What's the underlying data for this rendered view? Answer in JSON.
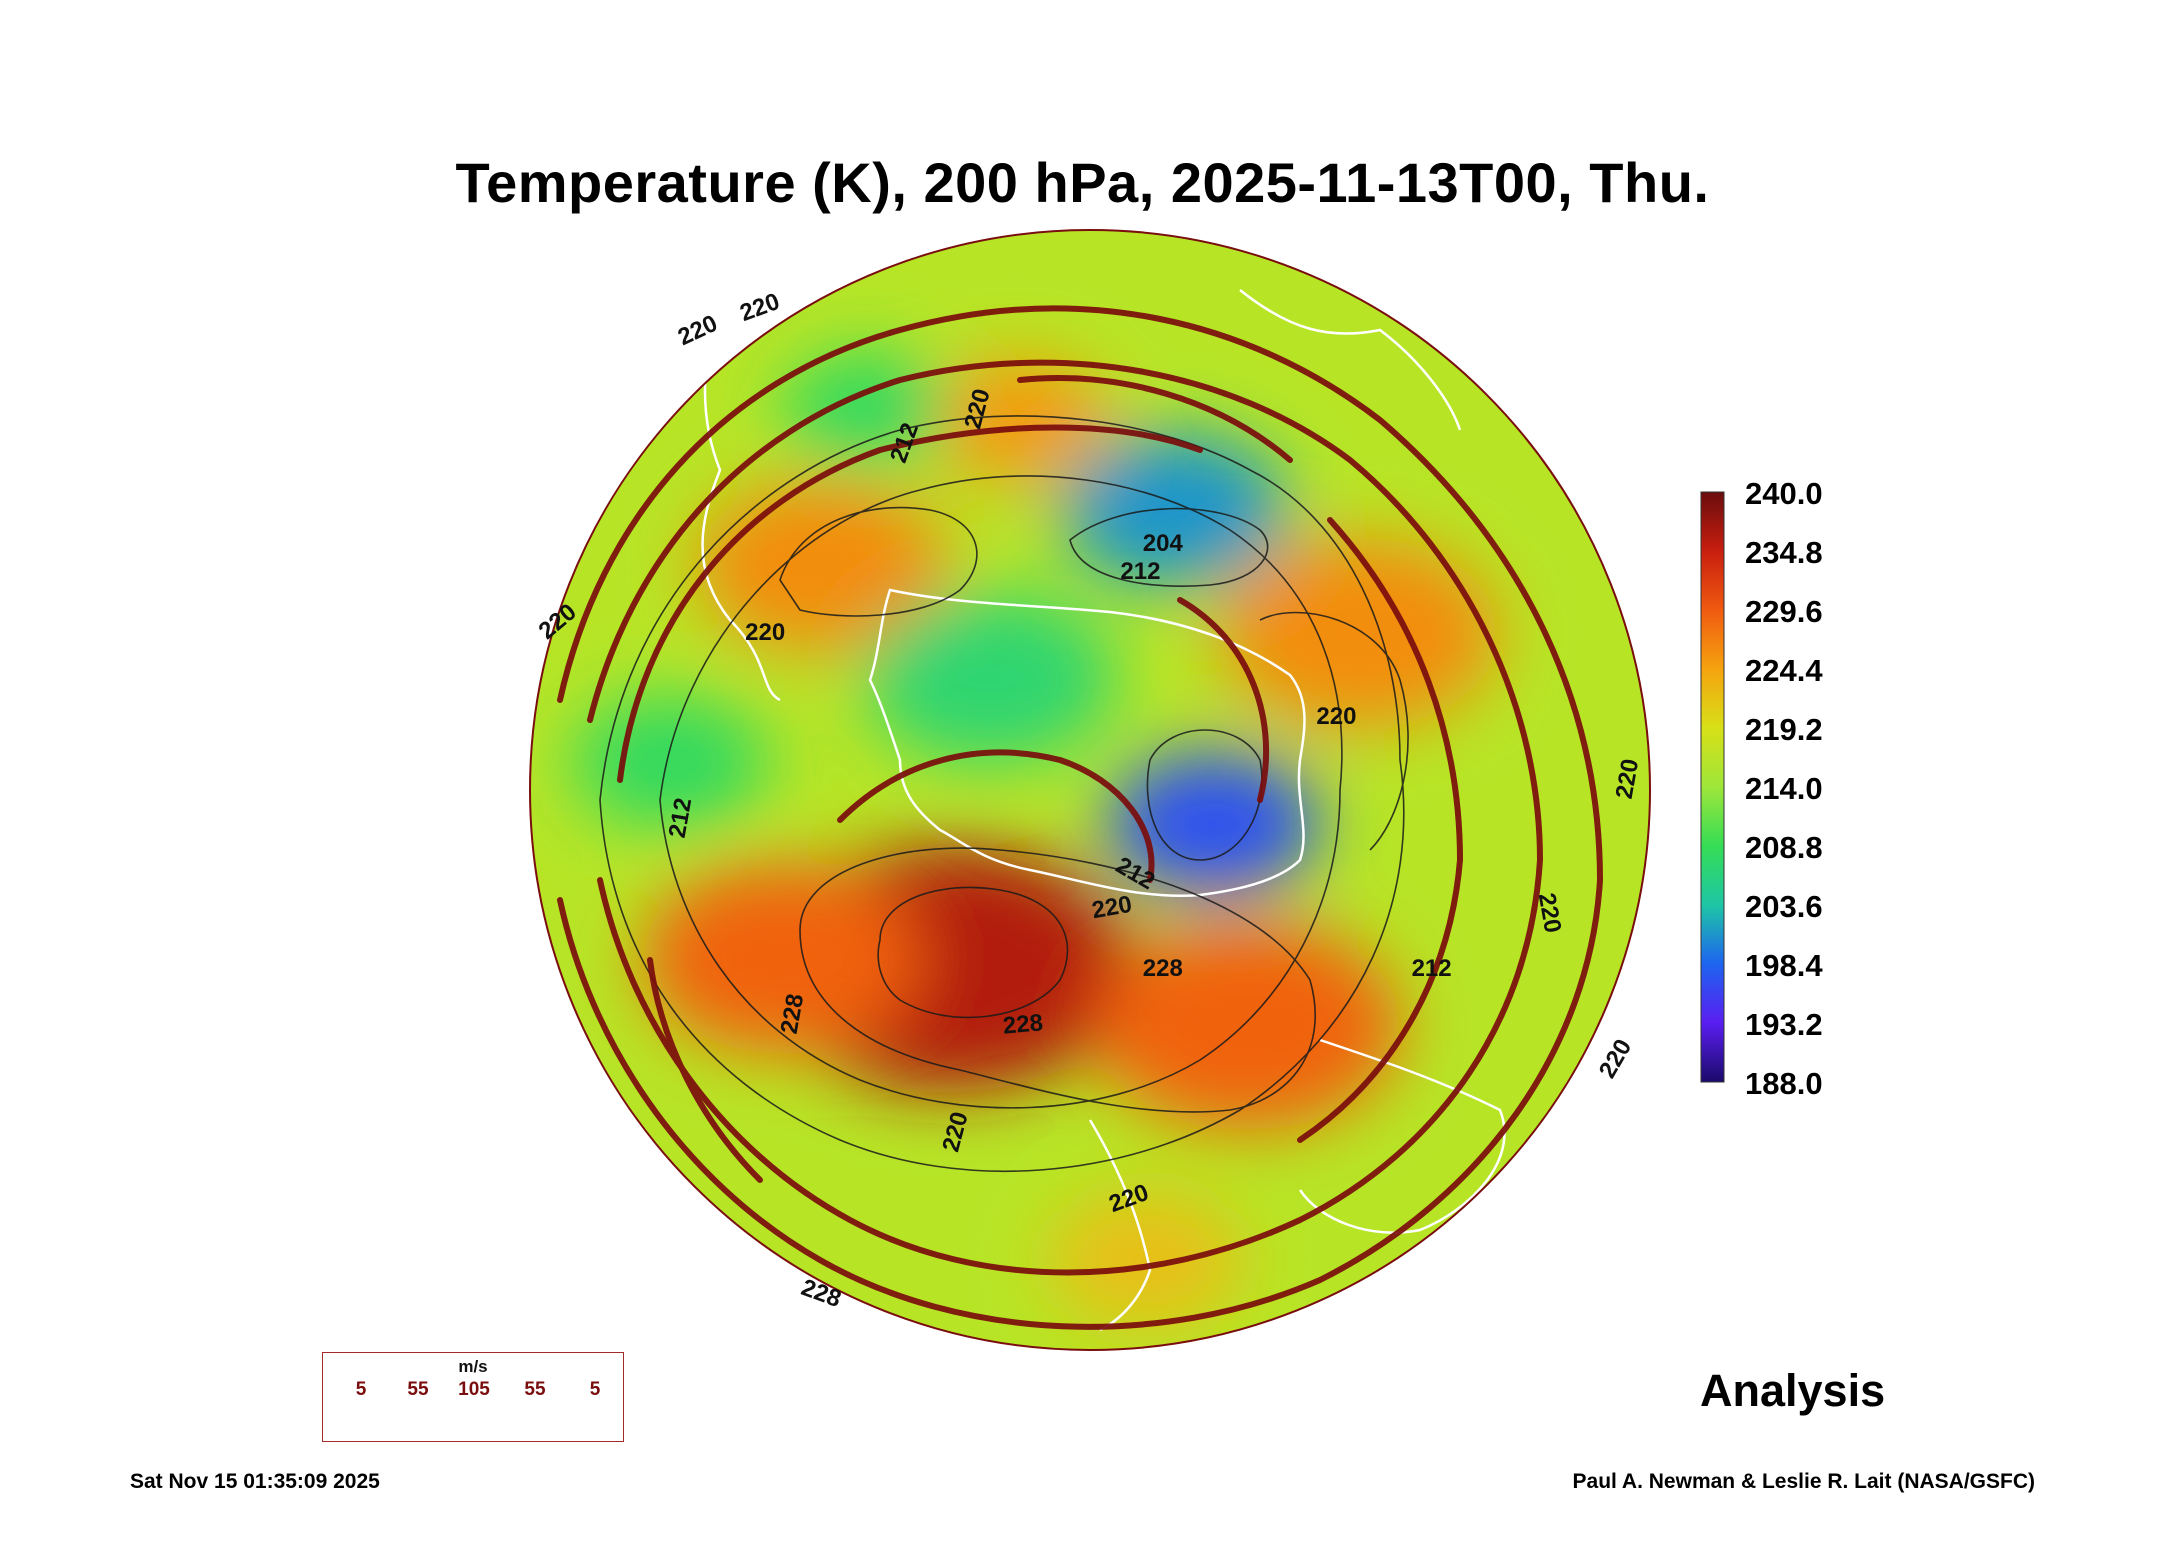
{
  "title": "Temperature (K), 200 hPa, 2025-11-13T00, Thu.",
  "colorbar": {
    "unit": "K",
    "min": 188.0,
    "max": 240.0,
    "tick_labels": [
      "240.0",
      "234.8",
      "229.6",
      "224.4",
      "219.2",
      "214.0",
      "208.8",
      "203.6",
      "198.4",
      "193.2",
      "188.0"
    ],
    "stops": [
      "#6a0d0d",
      "#c81e0f",
      "#f05a10",
      "#f5a30f",
      "#d8e017",
      "#9ee63a",
      "#35dd55",
      "#1ec6a5",
      "#1e64f0",
      "#5a1ef0",
      "#1a0a6a"
    ]
  },
  "map": {
    "projection": "orthographic, south polar",
    "contour_labels": [
      {
        "text": "220",
        "map_x": -0.7,
        "map_y": -0.82,
        "rotate": -25
      },
      {
        "text": "220",
        "map_x": -0.59,
        "map_y": -0.86,
        "rotate": -20
      },
      {
        "text": "220",
        "map_x": -0.95,
        "map_y": -0.3,
        "rotate": -40
      },
      {
        "text": "220",
        "map_x": -0.58,
        "map_y": -0.28,
        "rotate": 0
      },
      {
        "text": "212",
        "map_x": -0.33,
        "map_y": -0.62,
        "rotate": -70
      },
      {
        "text": "220",
        "map_x": -0.2,
        "map_y": -0.68,
        "rotate": -75
      },
      {
        "text": "204",
        "map_x": 0.13,
        "map_y": -0.44,
        "rotate": 0
      },
      {
        "text": "212",
        "map_x": 0.09,
        "map_y": -0.39,
        "rotate": 0
      },
      {
        "text": "220",
        "map_x": 0.44,
        "map_y": -0.13,
        "rotate": 0
      },
      {
        "text": "212",
        "map_x": -0.73,
        "map_y": 0.05,
        "rotate": -80
      },
      {
        "text": "212",
        "map_x": 0.08,
        "map_y": 0.15,
        "rotate": 30
      },
      {
        "text": "220",
        "map_x": 0.04,
        "map_y": 0.21,
        "rotate": -10
      },
      {
        "text": "228",
        "map_x": 0.13,
        "map_y": 0.32,
        "rotate": 0
      },
      {
        "text": "212",
        "map_x": 0.61,
        "map_y": 0.32,
        "rotate": 0
      },
      {
        "text": "228",
        "map_x": -0.53,
        "map_y": 0.4,
        "rotate": -80
      },
      {
        "text": "228",
        "map_x": -0.12,
        "map_y": 0.42,
        "rotate": -5
      },
      {
        "text": "220",
        "map_x": -0.24,
        "map_y": 0.61,
        "rotate": -75
      },
      {
        "text": "220",
        "map_x": 0.07,
        "map_y": 0.73,
        "rotate": -20
      },
      {
        "text": "228",
        "map_x": -0.48,
        "map_y": 0.9,
        "rotate": 20
      },
      {
        "text": "220",
        "map_x": 0.82,
        "map_y": 0.22,
        "rotate": 80
      },
      {
        "text": "220",
        "map_x": 0.96,
        "map_y": -0.02,
        "rotate": -80
      },
      {
        "text": "220",
        "map_x": 0.94,
        "map_y": 0.48,
        "rotate": -60
      }
    ],
    "temperature_features": [
      {
        "kind": "warm",
        "value": 236,
        "map_x": -0.25,
        "map_y": 0.32,
        "spread": 0.26
      },
      {
        "kind": "warm",
        "value": 229,
        "map_x": 0.28,
        "map_y": 0.42,
        "spread": 0.22
      },
      {
        "kind": "warm",
        "value": 229,
        "map_x": -0.55,
        "map_y": 0.3,
        "spread": 0.2
      },
      {
        "kind": "warm",
        "value": 226,
        "map_x": -0.48,
        "map_y": -0.4,
        "spread": 0.18
      },
      {
        "kind": "warm",
        "value": 226,
        "map_x": 0.48,
        "map_y": -0.28,
        "spread": 0.2
      },
      {
        "kind": "warm",
        "value": 225,
        "map_x": -0.13,
        "map_y": -0.66,
        "spread": 0.13
      },
      {
        "kind": "warm",
        "value": 222,
        "map_x": 0.1,
        "map_y": 0.84,
        "spread": 0.14
      },
      {
        "kind": "cold",
        "value": 197,
        "map_x": 0.22,
        "map_y": 0.06,
        "spread": 0.15
      },
      {
        "kind": "cold",
        "value": 201,
        "map_x": 0.15,
        "map_y": -0.5,
        "spread": 0.16
      },
      {
        "kind": "cold",
        "value": 207,
        "map_x": -0.18,
        "map_y": -0.2,
        "spread": 0.18
      },
      {
        "kind": "cold",
        "value": 208,
        "map_x": -0.4,
        "map_y": -0.68,
        "spread": 0.12
      },
      {
        "kind": "cold",
        "value": 208,
        "map_x": -0.75,
        "map_y": -0.05,
        "spread": 0.14
      }
    ]
  },
  "wind_legend": {
    "unit": "m/s",
    "speeds": [
      "5",
      "55",
      "105",
      "55",
      "5"
    ],
    "arrow_color": "#7a0d0d"
  },
  "analysis_label": "Analysis",
  "timestamp": "Sat Nov 15 01:35:09 2025",
  "credit": "Paul A. Newman & Leslie R. Lait (NASA/GSFC)"
}
